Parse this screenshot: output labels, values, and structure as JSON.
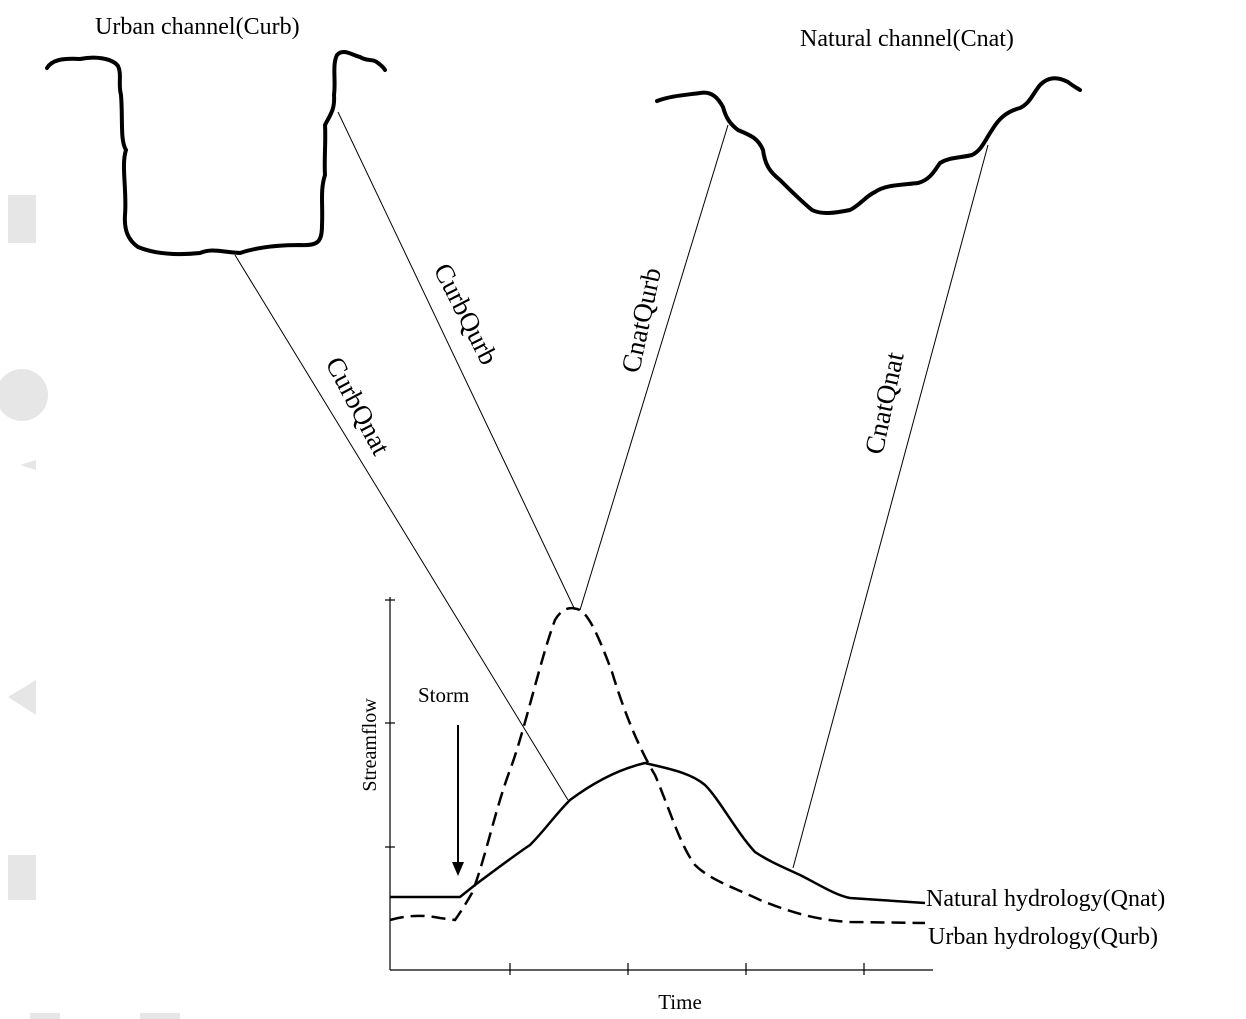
{
  "channels": [
    {
      "label": "Urban channel(Curb)"
    },
    {
      "label": "Natural channel(Cnat)"
    }
  ],
  "links": [
    {
      "label": "CurbQnat"
    },
    {
      "label": "CurbQurb"
    },
    {
      "label": "CnatQurb"
    },
    {
      "label": "CnatQnat"
    }
  ],
  "hydrograph": {
    "y_axis_label": "Streamflow",
    "x_axis_label": "Time",
    "event": "Storm",
    "curves": [
      {
        "label": "Natural hydrology(Qnat)"
      },
      {
        "label": "Urban hydrology(Qurb)"
      }
    ]
  }
}
